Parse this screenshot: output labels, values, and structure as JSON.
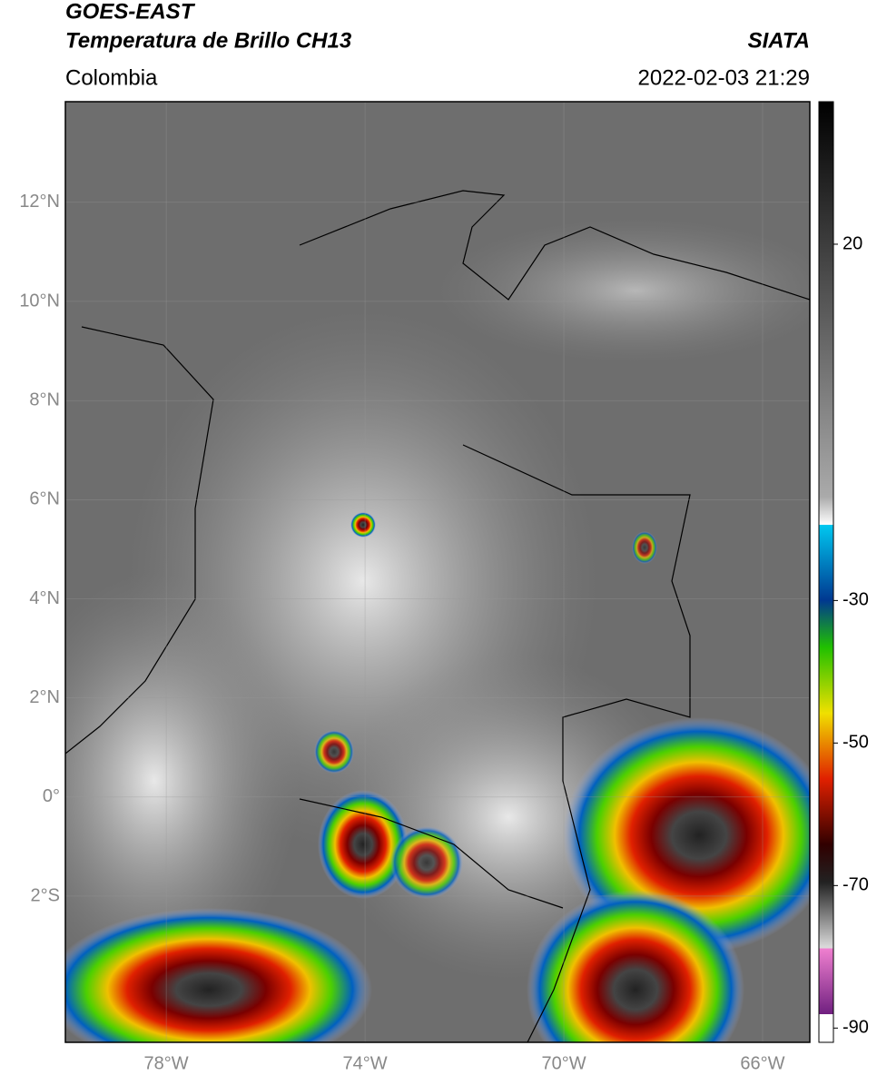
{
  "header": {
    "title": "GOES-EAST",
    "subtitle": "Temperatura de Brillo CH13",
    "region": "Colombia",
    "source": "SIATA",
    "datetime": "2022-02-03 21:29"
  },
  "map": {
    "lat_lim": [
      -4.95,
      14.03
    ],
    "lon_lim": [
      -80.03,
      -65.05
    ],
    "lat_ticks": [
      {
        "value": 12,
        "label": "12°N"
      },
      {
        "value": 10,
        "label": "10°N"
      },
      {
        "value": 8,
        "label": "8°N"
      },
      {
        "value": 6,
        "label": "6°N"
      },
      {
        "value": 4,
        "label": "4°N"
      },
      {
        "value": 2,
        "label": "2°N"
      },
      {
        "value": 0,
        "label": "0°"
      },
      {
        "value": -2,
        "label": "2°S"
      }
    ],
    "lon_ticks": [
      {
        "value": -78,
        "label": "78°W"
      },
      {
        "value": -74,
        "label": "74°W"
      },
      {
        "value": -70,
        "label": "70°W"
      },
      {
        "value": -66,
        "label": "66°W"
      }
    ]
  },
  "colorbar": {
    "lim": [
      -92,
      40
    ],
    "ticks": [
      20,
      -30,
      -50,
      -70,
      -90
    ]
  }
}
